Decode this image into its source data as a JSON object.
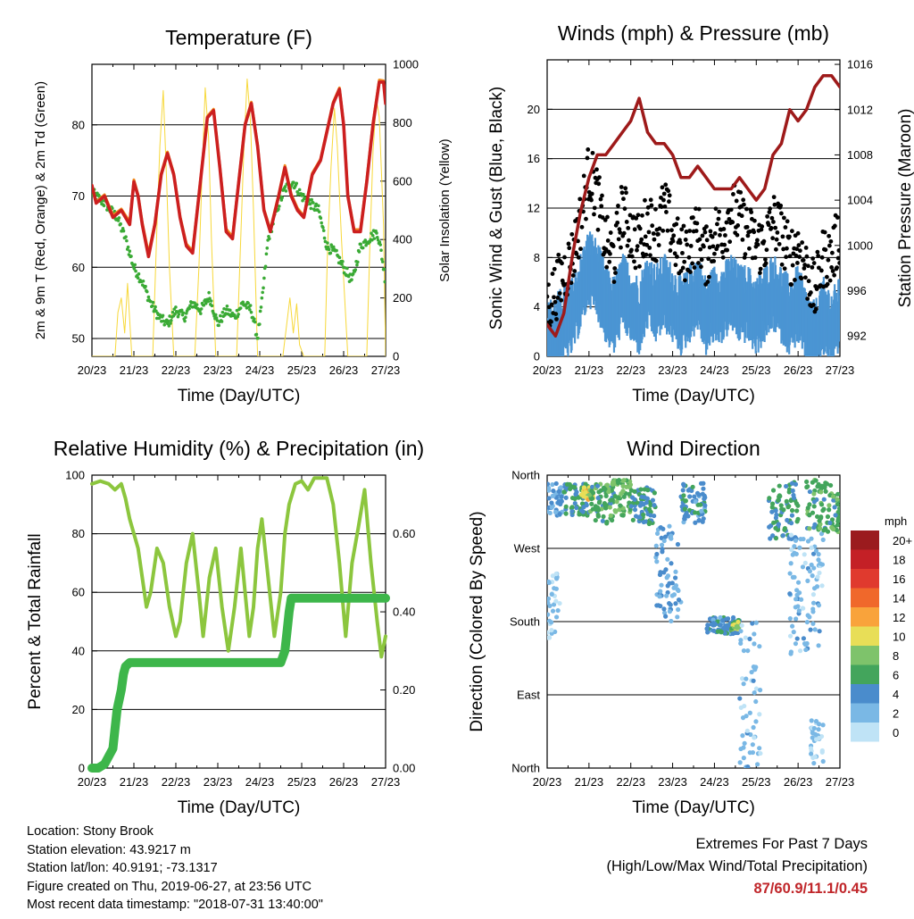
{
  "colors": {
    "temp_red": "#cc1f1f",
    "temp_orange": "#f28c1e",
    "dewpoint_green": "#3aaa35",
    "insolation_yellow": "#f7d83a",
    "wind_blue": "#4b95d3",
    "gust_black": "#000000",
    "pressure_maroon": "#9e1a1a",
    "rh_green": "#8cc63e",
    "precip_green": "#3db64a",
    "extremes_red": "#c0262a"
  },
  "x_tick_labels": [
    "20/23",
    "21/23",
    "22/23",
    "23/23",
    "24/23",
    "25/23",
    "26/23",
    "27/23"
  ],
  "footer": {
    "location": "Location: Stony Brook",
    "elevation": "Station elevation: 43.9217 m",
    "latlon": "Station lat/lon: 40.9191; -73.1317",
    "created": "Figure created on Thu, 2019-06-27, at 23:56 UTC",
    "recent": "Most recent data timestamp: \"2018-07-31 13:40:00\""
  },
  "extremes": {
    "line1": "Extremes For Past 7 Days",
    "line2": "(High/Low/Max Wind/Total Precipitation)",
    "values": "87/60.9/11.1/0.45"
  },
  "chart_data": [
    {
      "type": "line",
      "title": "Temperature (F)",
      "xlabel": "Time (Day/UTC)",
      "ylabel": "2m & 9m T (Red, Orange) & 2m Td (Green)",
      "ylabel_right": "Solar Insolation (Yellow)",
      "x_ticks": [
        "20/23",
        "21/23",
        "22/23",
        "23/23",
        "24/23",
        "25/23",
        "26/23",
        "27/23"
      ],
      "xlim": [
        0,
        7
      ],
      "ylim": [
        47.5,
        88.5
      ],
      "ylim_right": [
        0,
        1000
      ],
      "y_ticks": [
        50,
        60,
        70,
        80
      ],
      "y_ticks_right": [
        0,
        200,
        400,
        600,
        800,
        1000
      ],
      "grid": "horizontal",
      "series": [
        {
          "axis": "left",
          "x": [
            0,
            0.1,
            0.3,
            0.5,
            0.7,
            0.9,
            1.0,
            1.1,
            1.2,
            1.35,
            1.5,
            1.65,
            1.8,
            1.95,
            2.1,
            2.25,
            2.4,
            2.55,
            2.75,
            2.9,
            3.05,
            3.2,
            3.35,
            3.5,
            3.65,
            3.8,
            3.95,
            4.1,
            4.25,
            4.45,
            4.6,
            4.75,
            4.9,
            5.05,
            5.25,
            5.45,
            5.6,
            5.75,
            5.9,
            6.0,
            6.1,
            6.25,
            6.4,
            6.55,
            6.7,
            6.85,
            6.95,
            7.0
          ],
          "y": [
            71.5,
            69,
            70,
            67,
            68,
            66,
            72,
            70,
            66,
            61.5,
            66,
            73,
            76,
            73,
            67,
            63,
            62,
            70,
            81,
            82,
            74,
            65,
            64,
            72,
            80,
            83,
            77,
            68,
            65,
            70,
            74,
            70,
            68,
            67,
            73,
            75,
            79,
            83,
            85,
            80,
            70,
            65,
            65,
            72,
            80,
            86,
            86,
            83
          ]
        },
        {
          "axis": "left",
          "x": [
            0,
            0.1,
            0.3,
            0.5,
            0.7,
            0.9,
            1.0,
            1.1,
            1.2,
            1.35,
            1.5,
            1.65,
            1.8,
            1.95,
            2.1,
            2.25,
            2.4,
            2.55,
            2.75,
            2.9,
            3.05,
            3.2,
            3.35,
            3.5,
            3.65,
            3.8,
            3.95,
            4.1,
            4.25,
            4.45,
            4.6,
            4.75,
            4.9,
            5.05,
            5.25,
            5.45,
            5.6,
            5.75,
            5.9,
            6.0,
            6.1,
            6.25,
            6.4,
            6.55,
            6.7,
            6.85,
            6.95,
            7.0
          ],
          "y": [
            71.5,
            69.2,
            70.2,
            67.3,
            68.2,
            66.4,
            72.3,
            70.2,
            66.3,
            62,
            66.2,
            73.2,
            76.2,
            73.2,
            67.2,
            63.3,
            62.3,
            70.2,
            81.2,
            82.2,
            74.2,
            65.4,
            64.3,
            72.2,
            80.2,
            83.2,
            77.2,
            68.2,
            65.3,
            70.2,
            74.3,
            70.3,
            68.3,
            67.2,
            73.2,
            75.2,
            79.2,
            83.2,
            85.2,
            80.2,
            70.2,
            65.3,
            65.3,
            72.3,
            80.3,
            86.3,
            86.2,
            83.2
          ]
        },
        {
          "axis": "left",
          "x": [
            0,
            0.3,
            0.6,
            0.8,
            1.0,
            1.2,
            1.4,
            1.6,
            1.8,
            2.0,
            2.2,
            2.4,
            2.6,
            2.8,
            3.0,
            3.2,
            3.4,
            3.6,
            3.8,
            3.95,
            4.05,
            4.2,
            4.4,
            4.6,
            4.8,
            5.0,
            5.2,
            5.4,
            5.6,
            5.8,
            6.0,
            6.2,
            6.4,
            6.6,
            6.8,
            6.9,
            7.0
          ],
          "y": [
            70.5,
            69,
            67,
            64,
            60,
            58,
            55,
            53,
            52,
            54,
            53,
            55,
            54,
            56,
            52,
            54,
            53,
            55,
            54,
            50,
            55,
            64,
            68,
            71,
            72,
            70,
            69,
            68,
            63,
            62,
            60,
            58,
            63,
            64,
            65,
            62,
            58
          ]
        },
        {
          "axis": "right",
          "x": [
            0,
            0.55,
            0.62,
            0.7,
            0.78,
            0.85,
            0.95,
            1.1,
            1.25,
            1.45,
            1.55,
            1.62,
            1.7,
            1.78,
            1.85,
            1.95,
            2.1,
            2.3,
            2.45,
            2.55,
            2.62,
            2.7,
            2.78,
            2.85,
            2.95,
            3.1,
            3.3,
            3.45,
            3.55,
            3.62,
            3.7,
            3.78,
            3.85,
            3.95,
            4.1,
            4.3,
            4.55,
            4.65,
            4.72,
            4.8,
            4.88,
            4.95,
            5.05,
            5.3,
            5.55,
            5.62,
            5.7,
            5.78,
            5.85,
            5.95,
            6.1,
            6.3,
            6.55,
            6.62,
            6.7,
            6.78,
            6.85,
            6.95,
            7.0
          ],
          "y": [
            0,
            0,
            150,
            200,
            80,
            250,
            0,
            0,
            0,
            0,
            450,
            720,
            910,
            600,
            300,
            0,
            0,
            0,
            0,
            300,
            600,
            920,
            750,
            400,
            0,
            0,
            0,
            0,
            420,
            700,
            950,
            800,
            500,
            0,
            0,
            0,
            0,
            120,
            200,
            80,
            180,
            40,
            0,
            0,
            0,
            380,
            650,
            850,
            720,
            400,
            0,
            0,
            0,
            350,
            700,
            880,
            820,
            450,
            0
          ]
        }
      ],
      "series_colors": [
        "#cc1f1f",
        "#f28c1e",
        "#3aaa35",
        "#f7d83a"
      ]
    },
    {
      "type": "scatter",
      "title": "Winds (mph) & Pressure (mb)",
      "xlabel": "Time (Day/UTC)",
      "ylabel": "Sonic Wind & Gust (Blue, Black)",
      "ylabel_right": "Station Pressure (Maroon)",
      "x_ticks": [
        "20/23",
        "21/23",
        "22/23",
        "23/23",
        "24/23",
        "25/23",
        "26/23",
        "27/23"
      ],
      "xlim": [
        0,
        7
      ],
      "ylim": [
        0,
        24
      ],
      "ylim_right": [
        990.2,
        1016.4
      ],
      "y_ticks": [
        0,
        4,
        8,
        12,
        16,
        20
      ],
      "y_ticks_right": [
        992,
        996,
        1000,
        1004,
        1008,
        1012,
        1016
      ],
      "grid": "horizontal",
      "wind_envelope": {
        "x": [
          0,
          0.3,
          0.6,
          0.8,
          1.0,
          1.2,
          1.4,
          1.6,
          1.8,
          2.0,
          2.2,
          2.4,
          2.6,
          2.8,
          3.0,
          3.2,
          3.4,
          3.6,
          3.8,
          4.0,
          4.2,
          4.4,
          4.6,
          4.8,
          5.0,
          5.2,
          5.4,
          5.6,
          5.8,
          6.0,
          6.2,
          6.4,
          6.6,
          6.8,
          7.0
        ],
        "wind": [
          2,
          3,
          4,
          6,
          8,
          7,
          5,
          4,
          6,
          5,
          4,
          6,
          5,
          6,
          5,
          4,
          5,
          6,
          4,
          5,
          5,
          6,
          5,
          5,
          4,
          5,
          6,
          5,
          4,
          5,
          3,
          2,
          4,
          3,
          4
        ],
        "gust": [
          4,
          6,
          8,
          11,
          15,
          13,
          9,
          8,
          12,
          10,
          9,
          11,
          10,
          12,
          10,
          8,
          9,
          10,
          8,
          10,
          10,
          12,
          11,
          10,
          9,
          9,
          11,
          10,
          8,
          9,
          7,
          5,
          8,
          8,
          10
        ]
      },
      "pressure": {
        "x": [
          0,
          0.2,
          0.4,
          0.6,
          0.8,
          1.0,
          1.2,
          1.4,
          1.6,
          1.8,
          2.0,
          2.2,
          2.4,
          2.6,
          2.8,
          3.0,
          3.2,
          3.4,
          3.6,
          3.8,
          4.0,
          4.2,
          4.4,
          4.6,
          4.8,
          5.0,
          5.2,
          5.4,
          5.6,
          5.8,
          6.0,
          6.2,
          6.4,
          6.6,
          6.8,
          7.0
        ],
        "y": [
          993,
          992,
          994,
          999,
          1003,
          1006,
          1008,
          1008,
          1009,
          1010,
          1011,
          1013,
          1010,
          1009,
          1009,
          1008,
          1006,
          1006,
          1007,
          1006,
          1005,
          1005,
          1005,
          1006,
          1005,
          1004,
          1005,
          1008,
          1009,
          1012,
          1011,
          1012,
          1014,
          1015,
          1015,
          1014
        ]
      }
    },
    {
      "type": "line",
      "title": "Relative Humidity (%) & Precipitation (in)",
      "xlabel": "Time (Day/UTC)",
      "ylabel": "Percent & Total Rainfall",
      "x_ticks": [
        "20/23",
        "21/23",
        "22/23",
        "23/23",
        "24/23",
        "25/23",
        "26/23",
        "27/23"
      ],
      "xlim": [
        0,
        7
      ],
      "ylim": [
        0,
        100
      ],
      "ylim_right": [
        0,
        0.75
      ],
      "y_ticks": [
        0,
        20,
        40,
        60,
        80,
        100
      ],
      "y_ticks_right": [
        "0.00",
        "0.20",
        "0.40",
        "0.60"
      ],
      "grid": "horizontal",
      "series": [
        {
          "name": "RH",
          "x": [
            0,
            0.2,
            0.4,
            0.55,
            0.7,
            0.8,
            0.9,
            1.0,
            1.1,
            1.2,
            1.3,
            1.4,
            1.55,
            1.7,
            1.85,
            2.0,
            2.1,
            2.25,
            2.4,
            2.55,
            2.65,
            2.8,
            2.95,
            3.1,
            3.25,
            3.4,
            3.55,
            3.65,
            3.75,
            3.85,
            3.95,
            4.05,
            4.2,
            4.35,
            4.5,
            4.6,
            4.7,
            4.85,
            5.0,
            5.15,
            5.3,
            5.45,
            5.6,
            5.75,
            5.9,
            6.05,
            6.2,
            6.35,
            6.5,
            6.65,
            6.8,
            6.9,
            7.0
          ],
          "y": [
            97,
            98,
            97,
            95,
            97,
            92,
            85,
            80,
            75,
            65,
            55,
            60,
            75,
            70,
            55,
            45,
            50,
            70,
            80,
            60,
            45,
            65,
            75,
            55,
            40,
            55,
            75,
            60,
            45,
            55,
            75,
            85,
            65,
            45,
            60,
            80,
            90,
            97,
            98,
            95,
            99,
            99,
            99,
            90,
            70,
            45,
            70,
            82,
            95,
            70,
            50,
            38,
            45
          ]
        },
        {
          "name": "Precip",
          "x": [
            0,
            0.15,
            0.3,
            0.4,
            0.5,
            0.55,
            0.6,
            0.7,
            0.75,
            0.8,
            0.9,
            1.0,
            4.5,
            4.6,
            4.65,
            4.7,
            4.75,
            7.0
          ],
          "y": [
            0,
            0,
            0.01,
            0.03,
            0.05,
            0.1,
            0.15,
            0.2,
            0.24,
            0.26,
            0.27,
            0.27,
            0.27,
            0.3,
            0.35,
            0.4,
            0.435,
            0.435
          ]
        }
      ],
      "series_colors": [
        "#8cc63e",
        "#3db64a"
      ]
    },
    {
      "type": "scatter",
      "title": "Wind Direction",
      "xlabel": "Time (Day/UTC)",
      "ylabel": "Direction (Colored By Speed)",
      "x_ticks": [
        "20/23",
        "21/23",
        "22/23",
        "23/23",
        "24/23",
        "25/23",
        "26/23",
        "27/23"
      ],
      "xlim": [
        0,
        7
      ],
      "ylim": [
        0,
        360
      ],
      "y_tick_labels": [
        "North",
        "East",
        "South",
        "West",
        "North"
      ],
      "y_tick_values": [
        0,
        90,
        180,
        270,
        360
      ],
      "grid": "horizontal",
      "legend": {
        "title": "mph",
        "labels": [
          "20+",
          "18",
          "16",
          "14",
          "12",
          "10",
          "8",
          "6",
          "4",
          "2",
          "0"
        ],
        "colors": [
          "#9b1b1e",
          "#c42026",
          "#e03a2e",
          "#f0682b",
          "#f9a33b",
          "#e8de57",
          "#7ec36b",
          "#43a55c",
          "#4a8ccc",
          "#7ab8e5",
          "#bfe3f6"
        ]
      },
      "clusters": [
        {
          "x_range": [
            0.0,
            0.4
          ],
          "dir_range": [
            310,
            350
          ],
          "speed": 3
        },
        {
          "x_range": [
            0.0,
            0.3
          ],
          "dir_range": [
            160,
            240
          ],
          "speed": 1
        },
        {
          "x_range": [
            0.4,
            1.0
          ],
          "dir_range": [
            310,
            350
          ],
          "speed": 5
        },
        {
          "x_range": [
            0.8,
            1.1
          ],
          "dir_range": [
            330,
            345
          ],
          "speed": 10
        },
        {
          "x_range": [
            1.0,
            1.6
          ],
          "dir_range": [
            300,
            350
          ],
          "speed": 6
        },
        {
          "x_range": [
            1.5,
            2.0
          ],
          "dir_range": [
            310,
            355
          ],
          "speed": 7
        },
        {
          "x_range": [
            2.0,
            2.6
          ],
          "dir_range": [
            300,
            345
          ],
          "speed": 5
        },
        {
          "x_range": [
            2.6,
            3.2
          ],
          "dir_range": [
            180,
            300
          ],
          "speed": 3
        },
        {
          "x_range": [
            3.2,
            3.8
          ],
          "dir_range": [
            300,
            350
          ],
          "speed": 4
        },
        {
          "x_range": [
            3.8,
            4.6
          ],
          "dir_range": [
            165,
            185
          ],
          "speed": 4
        },
        {
          "x_range": [
            4.4,
            4.6
          ],
          "dir_range": [
            170,
            180
          ],
          "speed": 8
        },
        {
          "x_range": [
            4.6,
            5.1
          ],
          "dir_range": [
            0,
            180
          ],
          "speed": 2
        },
        {
          "x_range": [
            5.3,
            6.0
          ],
          "dir_range": [
            280,
            355
          ],
          "speed": 5
        },
        {
          "x_range": [
            5.8,
            6.6
          ],
          "dir_range": [
            140,
            290
          ],
          "speed": 2
        },
        {
          "x_range": [
            6.2,
            7.0
          ],
          "dir_range": [
            290,
            355
          ],
          "speed": 6
        },
        {
          "x_range": [
            6.3,
            6.6
          ],
          "dir_range": [
            0,
            60
          ],
          "speed": 1
        }
      ]
    }
  ]
}
